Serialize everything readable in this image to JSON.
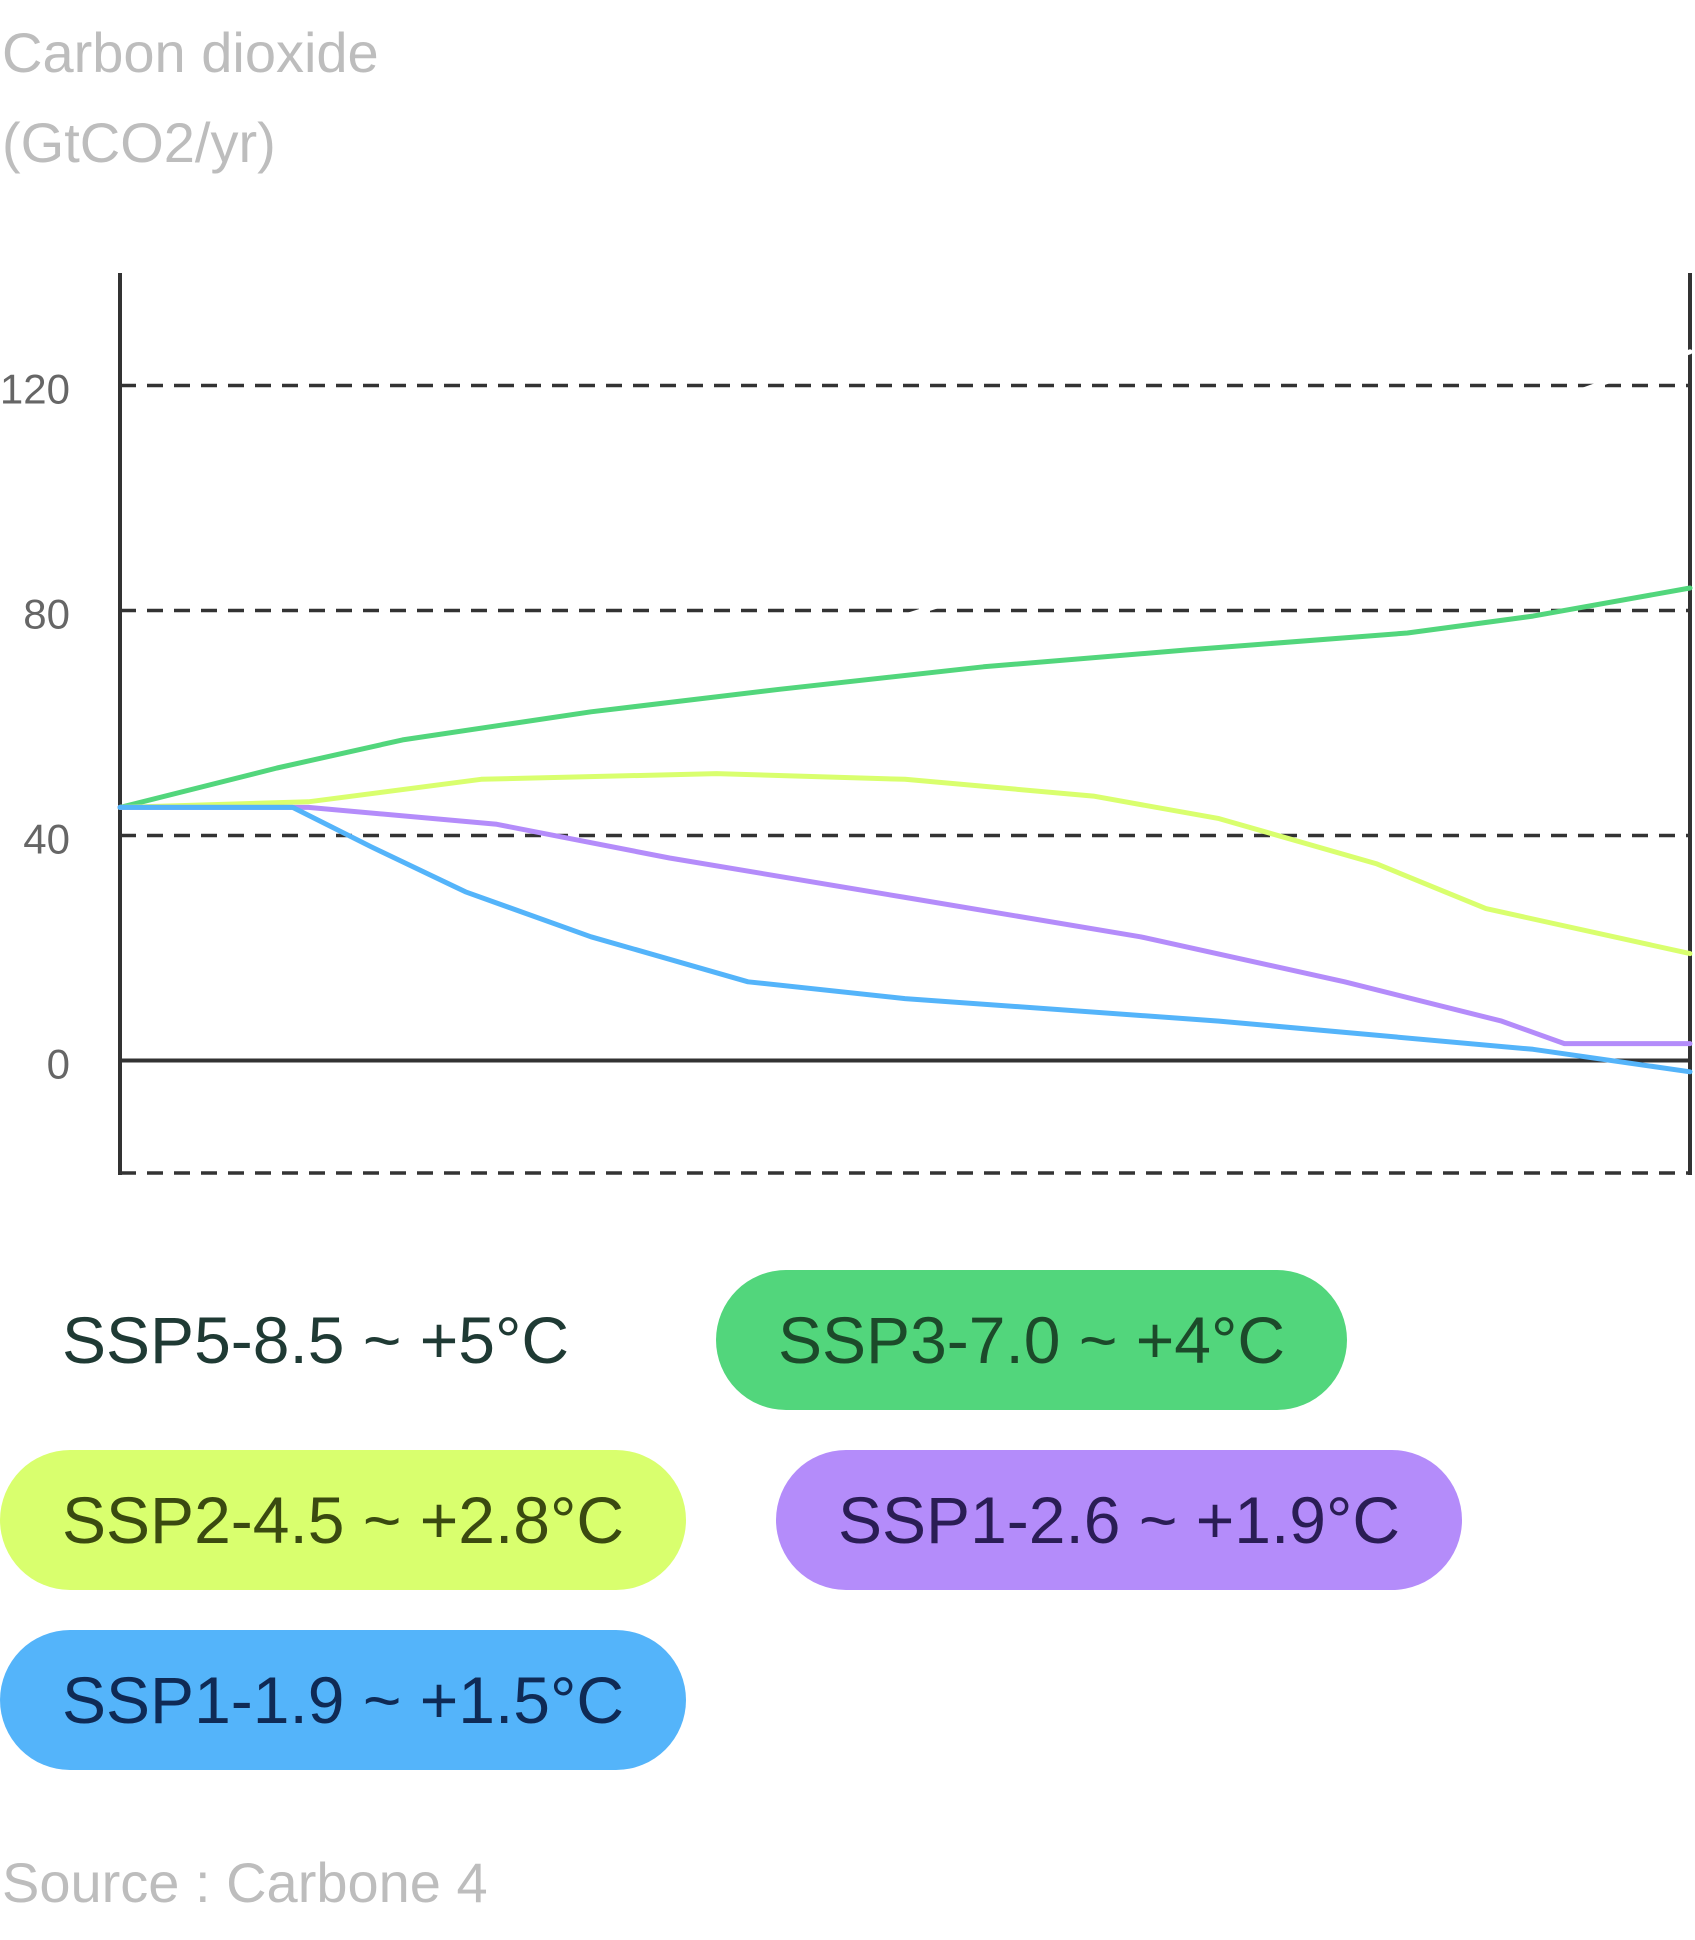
{
  "chart_data": {
    "type": "line",
    "ylabel": "Carbon dioxide\n(GtCO2/yr)",
    "yticks": [
      0,
      40,
      80,
      120
    ],
    "ylim": [
      -20,
      140
    ],
    "grid": true,
    "source": "Source : Carbone 4",
    "series": [
      {
        "name": "SSP5-8.5 ~ +5°C",
        "color": "#ffffff",
        "label_color": "#1f3a34",
        "points": [
          [
            0,
            45
          ],
          [
            25,
            58
          ],
          [
            50,
            79
          ],
          [
            75,
            101
          ],
          [
            100,
            126
          ]
        ]
      },
      {
        "name": "SSP3-7.0 ~ +4°C",
        "color": "#52d67c",
        "label_color": "#1c4a2a",
        "points": [
          [
            0,
            45
          ],
          [
            10,
            52
          ],
          [
            18,
            57
          ],
          [
            30,
            62
          ],
          [
            42,
            66
          ],
          [
            55,
            70
          ],
          [
            68,
            73
          ],
          [
            82,
            76
          ],
          [
            90,
            79
          ],
          [
            100,
            84
          ]
        ]
      },
      {
        "name": "SSP2-4.5 ~ +2.8°C",
        "color": "#d9ff6e",
        "label_color": "#3a4a10",
        "points": [
          [
            0,
            45
          ],
          [
            12,
            46
          ],
          [
            23,
            50
          ],
          [
            38,
            51
          ],
          [
            50,
            50
          ],
          [
            62,
            47
          ],
          [
            70,
            43
          ],
          [
            80,
            35
          ],
          [
            87,
            27
          ],
          [
            100,
            19
          ]
        ]
      },
      {
        "name": "SSP1-2.6 ~ +1.9°C",
        "color": "#b48cfa",
        "label_color": "#2a1d55",
        "points": [
          [
            0,
            45
          ],
          [
            12,
            45
          ],
          [
            24,
            42
          ],
          [
            35,
            36
          ],
          [
            50,
            29
          ],
          [
            65,
            22
          ],
          [
            78,
            14
          ],
          [
            88,
            7
          ],
          [
            92,
            3
          ],
          [
            100,
            3
          ]
        ]
      },
      {
        "name": "SSP1-1.9 ~ +1.5°C",
        "color": "#54b4fa",
        "label_color": "#0f2a55",
        "points": [
          [
            0,
            45
          ],
          [
            11,
            45
          ],
          [
            16,
            38
          ],
          [
            22,
            30
          ],
          [
            30,
            22
          ],
          [
            40,
            14
          ],
          [
            50,
            11
          ],
          [
            70,
            7
          ],
          [
            90,
            2
          ],
          [
            100,
            -2
          ]
        ]
      }
    ]
  }
}
